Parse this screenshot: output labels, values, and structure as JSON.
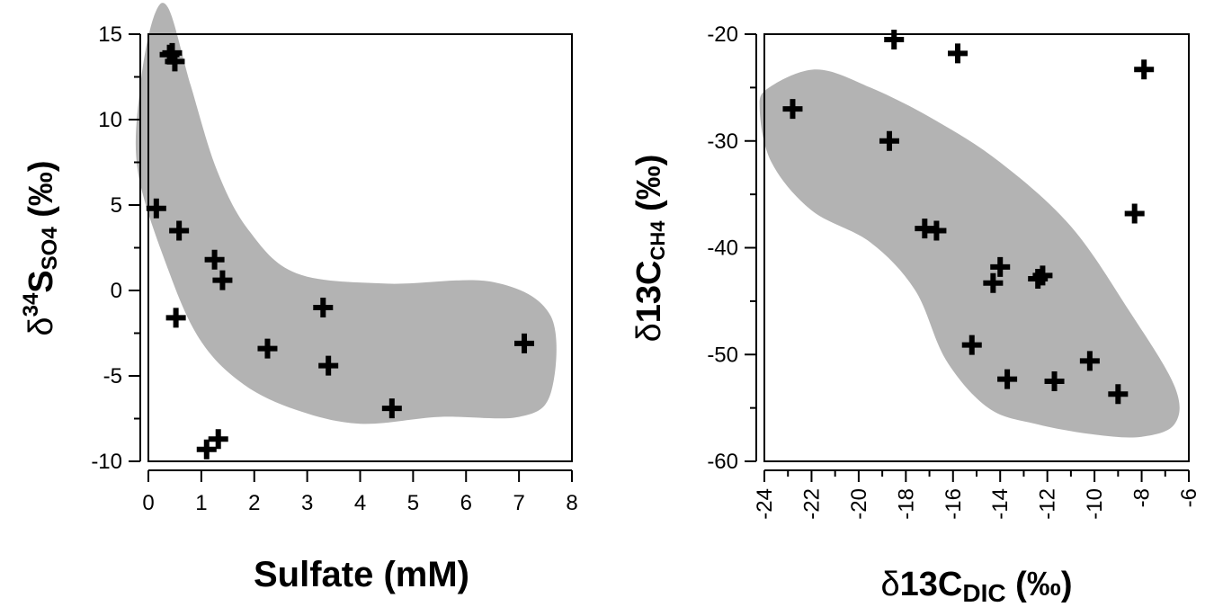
{
  "chart_data": [
    {
      "type": "scatter",
      "xlabel": {
        "main": "Sulfate (mM)"
      },
      "ylabel": {
        "prefix": "δ",
        "sup": "34",
        "main": "S",
        "sub": "SO4",
        "suffix": " (‰)"
      },
      "xlim": [
        0,
        8
      ],
      "ylim": [
        -10,
        15
      ],
      "xticks": [
        "0",
        "1",
        "2",
        "3",
        "4",
        "5",
        "6",
        "7",
        "8"
      ],
      "yticks": [
        "-10",
        "-5",
        "0",
        "5",
        "10",
        "15"
      ],
      "grid": false,
      "marker": "plus",
      "highlight_color": "#b3b3b3",
      "highlight_region": [
        [
          0.38,
          16.5
        ],
        [
          0.8,
          12
        ],
        [
          1.3,
          7
        ],
        [
          1.9,
          3.5
        ],
        [
          2.8,
          1
        ],
        [
          4.5,
          0.4
        ],
        [
          6.5,
          0.5
        ],
        [
          7.6,
          -1.5
        ],
        [
          7.6,
          -6
        ],
        [
          7.0,
          -7.4
        ],
        [
          5.5,
          -7.4
        ],
        [
          4.0,
          -7.8
        ],
        [
          2.8,
          -7.0
        ],
        [
          1.8,
          -5.5
        ],
        [
          1.0,
          -3
        ],
        [
          0.4,
          1
        ],
        [
          -0.2,
          7
        ],
        [
          -0.15,
          12
        ],
        [
          0.1,
          16
        ]
      ],
      "points": [
        {
          "x": 0.4,
          "y": 13.8
        },
        {
          "x": 0.45,
          "y": 13.9
        },
        {
          "x": 0.5,
          "y": 13.4
        },
        {
          "x": 0.15,
          "y": 4.8
        },
        {
          "x": 0.58,
          "y": 3.5
        },
        {
          "x": 0.52,
          "y": -1.6
        },
        {
          "x": 1.25,
          "y": 1.8
        },
        {
          "x": 1.4,
          "y": 0.6
        },
        {
          "x": 2.25,
          "y": -3.4
        },
        {
          "x": 3.3,
          "y": -1.0
        },
        {
          "x": 3.4,
          "y": -4.4
        },
        {
          "x": 4.6,
          "y": -6.9
        },
        {
          "x": 7.1,
          "y": -3.1
        },
        {
          "x": 1.1,
          "y": -9.3
        },
        {
          "x": 1.32,
          "y": -8.7
        }
      ]
    },
    {
      "type": "scatter",
      "xlabel": {
        "prefix": "δ",
        "main": "13C",
        "sub": "DIC",
        "suffix": " (‰)"
      },
      "ylabel": {
        "prefix": "δ",
        "main": "13C",
        "sub": "CH4",
        "suffix": " (‰)"
      },
      "xlim": [
        -24,
        -6
      ],
      "ylim": [
        -60,
        -20
      ],
      "xticks": [
        "-24",
        "-22",
        "-20",
        "-18",
        "-16",
        "-14",
        "-12",
        "-10",
        "-8",
        "-6"
      ],
      "yticks": [
        "-60",
        "-50",
        "-40",
        "-30",
        "-20"
      ],
      "grid": false,
      "marker": "plus",
      "highlight_color": "#b3b3b3",
      "highlight_region": [
        [
          -23.8,
          -25
        ],
        [
          -21.8,
          -23.3
        ],
        [
          -19.5,
          -25
        ],
        [
          -16.8,
          -28
        ],
        [
          -14,
          -32
        ],
        [
          -11,
          -38
        ],
        [
          -8.5,
          -46
        ],
        [
          -6.6,
          -53
        ],
        [
          -6.6,
          -56.5
        ],
        [
          -8,
          -57.7
        ],
        [
          -10,
          -57.5
        ],
        [
          -12.5,
          -56.5
        ],
        [
          -14.5,
          -55
        ],
        [
          -16.3,
          -50.5
        ],
        [
          -17.6,
          -44
        ],
        [
          -19.5,
          -39.5
        ],
        [
          -22,
          -36.5
        ],
        [
          -23.7,
          -32
        ],
        [
          -24.2,
          -27
        ]
      ],
      "points": [
        {
          "x": -18.5,
          "y": -20.5
        },
        {
          "x": -15.8,
          "y": -21.8
        },
        {
          "x": -7.9,
          "y": -23.3
        },
        {
          "x": -22.8,
          "y": -27.0
        },
        {
          "x": -18.7,
          "y": -30.0
        },
        {
          "x": -8.3,
          "y": -36.8
        },
        {
          "x": -17.2,
          "y": -38.2
        },
        {
          "x": -16.7,
          "y": -38.4
        },
        {
          "x": -14.0,
          "y": -41.8
        },
        {
          "x": -14.3,
          "y": -43.3
        },
        {
          "x": -12.4,
          "y": -42.9
        },
        {
          "x": -12.2,
          "y": -42.6
        },
        {
          "x": -15.2,
          "y": -49.1
        },
        {
          "x": -13.7,
          "y": -52.3
        },
        {
          "x": -11.7,
          "y": -52.5
        },
        {
          "x": -10.2,
          "y": -50.6
        },
        {
          "x": -9.0,
          "y": -53.7
        }
      ]
    }
  ]
}
